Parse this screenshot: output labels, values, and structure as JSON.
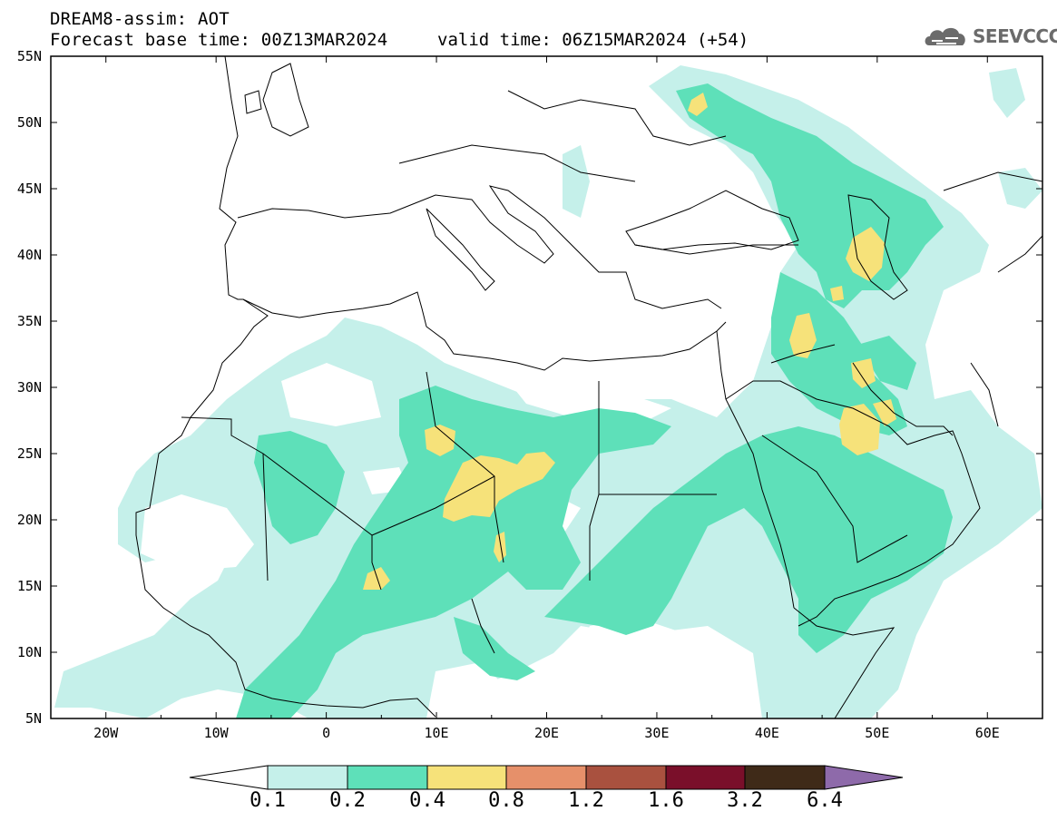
{
  "header": {
    "model_line": "DREAM8-assim: AOT",
    "base_time_line": "Forecast base time: 00Z13MAR2024",
    "valid_time_line": "valid time: 06Z15MAR2024 (+54)",
    "logo_text": "SEEVCCC"
  },
  "map": {
    "lat_labels": [
      "55N",
      "50N",
      "45N",
      "40N",
      "35N",
      "30N",
      "25N",
      "20N",
      "15N",
      "10N",
      "5N"
    ],
    "lon_labels": [
      "20W",
      "10W",
      "0",
      "10E",
      "20E",
      "30E",
      "40E",
      "50E",
      "60E"
    ],
    "extent": {
      "lon_min": -25,
      "lon_max": 65,
      "lat_min": 5,
      "lat_max": 55
    }
  },
  "colorbar": {
    "labels": [
      "0.1",
      "0.2",
      "0.4",
      "0.8",
      "1.2",
      "1.6",
      "3.2",
      "6.4"
    ],
    "colors": [
      "#ffffff",
      "#c5f0ea",
      "#5ee0b9",
      "#f6e27a",
      "#e6906a",
      "#a9513f",
      "#7a0f2a",
      "#3f2a18",
      "#8e6aaa"
    ]
  }
}
